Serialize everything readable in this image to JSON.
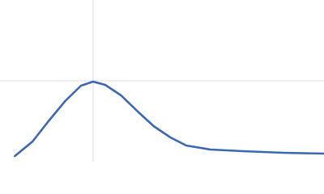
{
  "chart_data": {
    "type": "line",
    "x": [
      0.16,
      0.35,
      0.52,
      0.7,
      0.87,
      1.0,
      1.13,
      1.3,
      1.48,
      1.65,
      1.83,
      2.0,
      2.26,
      2.61,
      3.04,
      3.48
    ],
    "series": [
      {
        "color": "#3b68b4",
        "values": [
          0.07,
          0.25,
          0.5,
          0.75,
          0.94,
          0.99,
          0.95,
          0.82,
          0.62,
          0.44,
          0.3,
          0.2,
          0.15,
          0.13,
          0.11,
          0.1
        ]
      }
    ],
    "xlim": [
      0,
      3.48
    ],
    "ylim": [
      0,
      2
    ],
    "xticks": [
      1
    ],
    "yticks": [
      1
    ],
    "grid": true
  }
}
